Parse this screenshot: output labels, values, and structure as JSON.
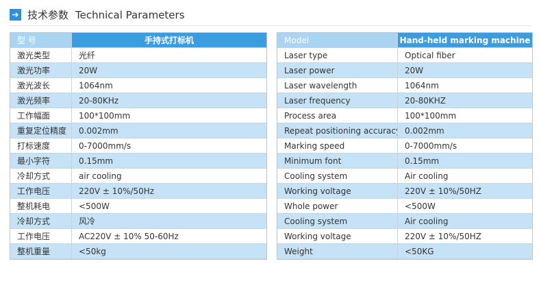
{
  "header": {
    "title_cn": "技术参数",
    "title_en": "Technical Parameters"
  },
  "tables": [
    {
      "header": [
        "型 号",
        "手持式打标机"
      ],
      "rows": [
        [
          "激光类型",
          "光纤"
        ],
        [
          "激光功率",
          "20W"
        ],
        [
          "激光波长",
          "1064nm"
        ],
        [
          "激光频率",
          "20-80KHz"
        ],
        [
          "工作幅面",
          "100*100mm"
        ],
        [
          "重复定位精度",
          "0.002mm"
        ],
        [
          "打标速度",
          "0-7000mm/s"
        ],
        [
          "最小字符",
          "0.15mm"
        ],
        [
          "冷却方式",
          "air cooling"
        ],
        [
          "工作电压",
          "220V ± 10%/50Hz"
        ],
        [
          "整机耗电",
          "<500W"
        ],
        [
          "冷却方式",
          "风冷"
        ],
        [
          "工作电压",
          "AC220V ± 10% 50-60Hz"
        ],
        [
          "整机重量",
          "<50kg"
        ]
      ]
    },
    {
      "header": [
        "Model",
        "Hand-held marking machine"
      ],
      "rows": [
        [
          "Laser type",
          "Optical fiber"
        ],
        [
          "Laser power",
          "20W"
        ],
        [
          "Laser wavelength",
          "1064nm"
        ],
        [
          "Laser frequency",
          "20-80KHZ"
        ],
        [
          "Process area",
          "100*100mm"
        ],
        [
          "Repeat positioning accuracy",
          "0.002mm"
        ],
        [
          "Marking speed",
          "0-7000mm/s"
        ],
        [
          "Minimum font",
          "0.15mm"
        ],
        [
          "Cooling system",
          "Air cooling"
        ],
        [
          "Working voltage",
          "220V ± 10%/50HZ"
        ],
        [
          "Whole power",
          "<500W"
        ],
        [
          "Cooling system",
          "Air cooling"
        ],
        [
          "Working voltage",
          "220V ± 10%/50HZ"
        ],
        [
          "Weight",
          "<50KG"
        ]
      ]
    }
  ]
}
